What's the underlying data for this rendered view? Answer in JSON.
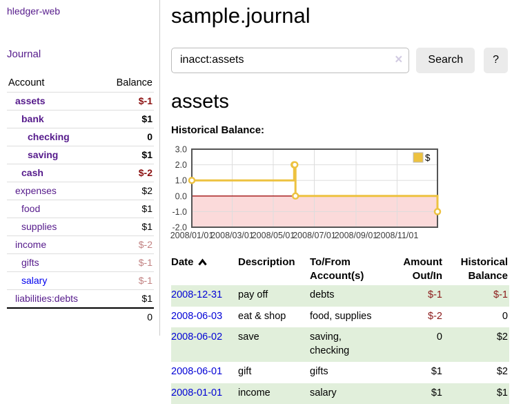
{
  "colors": {
    "link_purple": "#551a8b",
    "link_blue": "#0000ee",
    "date_link": "#0202d6",
    "negative_strong": "#8b1010",
    "negative_soft": "#c28282",
    "negative": "#8b1a1a",
    "row_stripe": "#e1efdb",
    "series": "#edc240",
    "gridline": "#dddddd",
    "plot_border": "#545454",
    "negative_region": "#fbdada",
    "zero_line": "#a01010",
    "button_bg": "#ebebeb",
    "input_border": "#bbbbbb",
    "clear_icon": "#d2cbe2",
    "divider": "#cccccc",
    "row_line": "#dddddd",
    "total_line": "#000000",
    "tick_text": "#3b3b3b"
  },
  "sidebar": {
    "brand": "hledger-web",
    "nav": [
      {
        "label": "Journal"
      }
    ],
    "accounts": {
      "headers": [
        "Account",
        "Balance"
      ],
      "rows": [
        {
          "account": "assets",
          "balance": "$-1",
          "depth": 1,
          "bold": true,
          "neg": "strong",
          "link": "purple"
        },
        {
          "account": "bank",
          "balance": "$1",
          "depth": 2,
          "bold": true,
          "neg": null,
          "link": "purple"
        },
        {
          "account": "checking",
          "balance": "0",
          "depth": 3,
          "bold": true,
          "neg": null,
          "link": "purple"
        },
        {
          "account": "saving",
          "balance": "$1",
          "depth": 3,
          "bold": true,
          "neg": null,
          "link": "purple"
        },
        {
          "account": "cash",
          "balance": "$-2",
          "depth": 2,
          "bold": true,
          "neg": "strong",
          "link": "purple"
        },
        {
          "account": "expenses",
          "balance": "$2",
          "depth": 1,
          "bold": false,
          "neg": null,
          "link": "purple"
        },
        {
          "account": "food",
          "balance": "$1",
          "depth": 2,
          "bold": false,
          "neg": null,
          "link": "purple"
        },
        {
          "account": "supplies",
          "balance": "$1",
          "depth": 2,
          "bold": false,
          "neg": null,
          "link": "purple"
        },
        {
          "account": "income",
          "balance": "$-2",
          "depth": 1,
          "bold": false,
          "neg": "soft",
          "link": "purple"
        },
        {
          "account": "gifts",
          "balance": "$-1",
          "depth": 2,
          "bold": false,
          "neg": "soft",
          "link": "purple"
        },
        {
          "account": "salary",
          "balance": "$-1",
          "depth": 2,
          "bold": false,
          "neg": "soft",
          "link": "blue"
        },
        {
          "account": "liabilities:debts",
          "balance": "$1",
          "depth": 1,
          "bold": false,
          "neg": null,
          "link": "purple"
        }
      ],
      "total": "0"
    }
  },
  "header": {
    "title": "sample.journal"
  },
  "search": {
    "query": "inacct:assets",
    "clear_icon": "×",
    "button_label": "Search",
    "help_label": "?"
  },
  "main": {
    "account_heading": "assets",
    "chart_title": "Historical Balance:"
  },
  "chart_data": {
    "type": "line",
    "steps": true,
    "title": "Historical Balance",
    "series": [
      {
        "name": "$",
        "color": "#edc240",
        "points": [
          [
            "2008-01-01",
            1
          ],
          [
            "2008-06-01",
            2
          ],
          [
            "2008-06-02",
            2
          ],
          [
            "2008-06-03",
            0
          ],
          [
            "2008-12-31",
            -1
          ]
        ]
      }
    ],
    "x_range": [
      "2008-01-01",
      "2008-12-31"
    ],
    "ylim": [
      -2,
      3
    ],
    "x_ticks": [
      "2008/01/01",
      "2008/03/01",
      "2008/05/01",
      "2008/07/01",
      "2008/09/01",
      "2008/11/01"
    ],
    "y_ticks": [
      3.0,
      2.0,
      1.0,
      0.0,
      -1.0,
      -2.0
    ],
    "legend": {
      "label": "$",
      "position": "top-right"
    },
    "grid": true,
    "negative_region_fill": "#fbdada",
    "zero_line_color": "#a01010"
  },
  "register": {
    "headers": [
      {
        "lines": [
          "Date"
        ],
        "align": "left",
        "sorted": true
      },
      {
        "lines": [
          "Description"
        ],
        "align": "left"
      },
      {
        "lines": [
          "To/From",
          "Account(s)"
        ],
        "align": "left"
      },
      {
        "lines": [
          "Amount",
          "Out/In"
        ],
        "align": "right"
      },
      {
        "lines": [
          "Historical",
          "Balance"
        ],
        "align": "right"
      }
    ],
    "rows": [
      {
        "date": "2008-12-31",
        "description": "pay off",
        "accounts": "debts",
        "amount": "$-1",
        "balance": "$-1"
      },
      {
        "date": "2008-06-03",
        "description": "eat & shop",
        "accounts": "food, supplies",
        "amount": "$-2",
        "balance": "0"
      },
      {
        "date": "2008-06-02",
        "description": "save",
        "accounts": "saving, checking",
        "amount": "0",
        "balance": "$2"
      },
      {
        "date": "2008-06-01",
        "description": "gift",
        "accounts": "gifts",
        "amount": "$1",
        "balance": "$2"
      },
      {
        "date": "2008-01-01",
        "description": "income",
        "accounts": "salary",
        "amount": "$1",
        "balance": "$1"
      }
    ]
  }
}
